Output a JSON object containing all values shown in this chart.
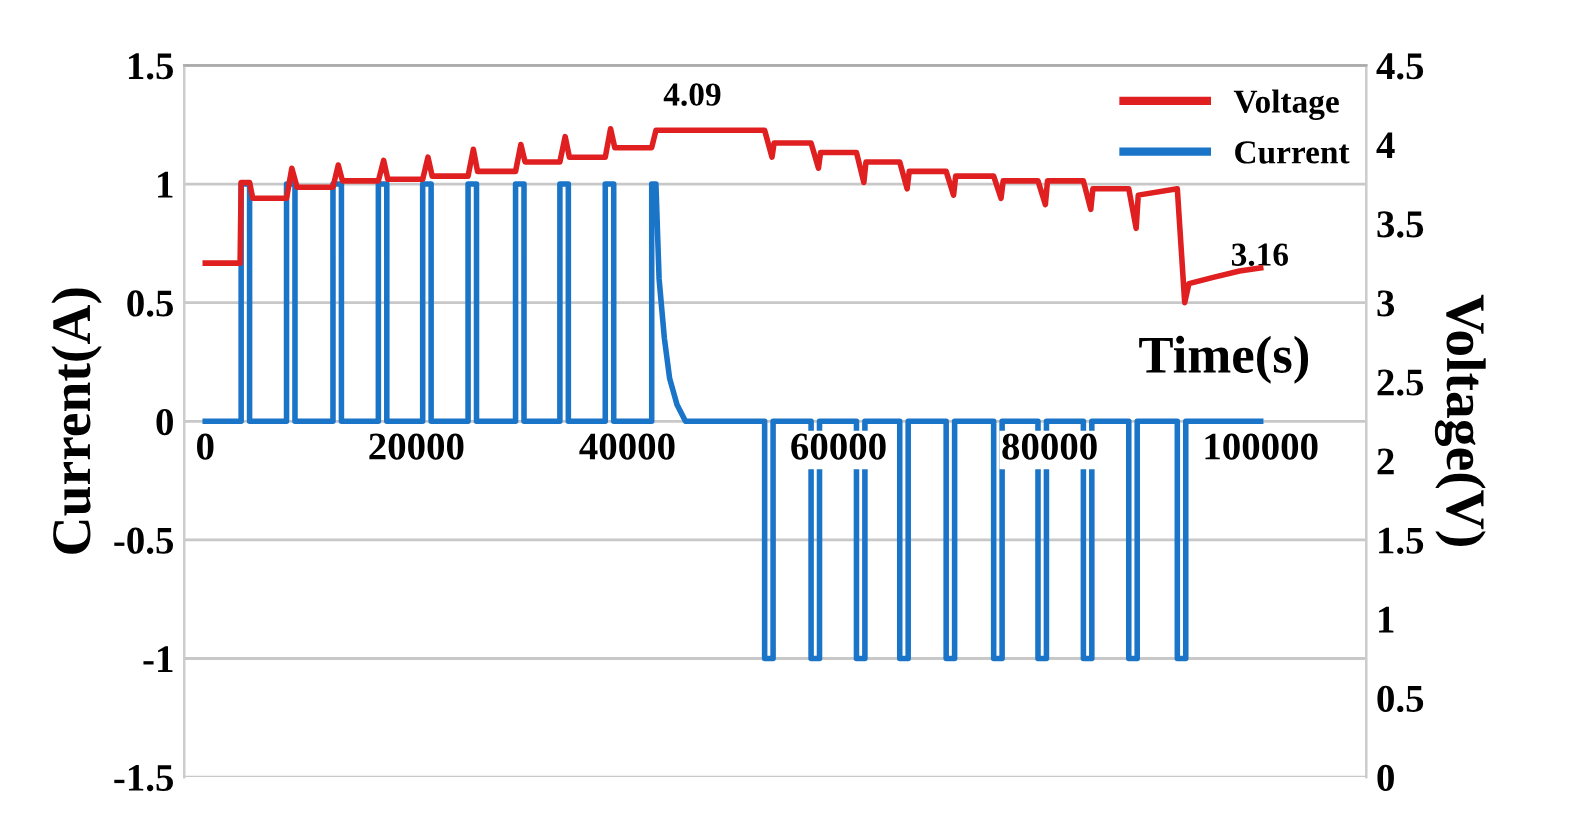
{
  "chart_data": {
    "type": "line",
    "xlabel": "Time(s)",
    "ylabel": "Current(A)",
    "y2label": "Voltage(V)",
    "xlim": [
      -2000,
      110000
    ],
    "xticks": [
      0,
      20000,
      40000,
      60000,
      80000,
      100000
    ],
    "ylim": [
      -1.5,
      1.5
    ],
    "yticks": [
      -1.5,
      -1,
      -0.5,
      0,
      0.5,
      1,
      1.5
    ],
    "y2lim": [
      0,
      4.5
    ],
    "y2ticks": [
      0,
      0.5,
      1,
      1.5,
      2,
      2.5,
      3,
      3.5,
      4,
      4.5
    ],
    "grid": "y",
    "legend": "top right",
    "marker": "none",
    "line_style": "solid",
    "annotations": [
      "4.09",
      "3.16"
    ],
    "series": [
      {
        "name": "Voltage",
        "color": "#e02020",
        "axis": "y2",
        "x": [
          0,
          3300,
          3400,
          4200,
          4500,
          7700,
          8200,
          8700,
          12100,
          12600,
          13000,
          16400,
          16900,
          17300,
          20600,
          21100,
          21500,
          24900,
          25400,
          25800,
          29400,
          29900,
          30300,
          33600,
          34100,
          34500,
          37900,
          38400,
          38800,
          42300,
          42700,
          53000,
          53700,
          53900,
          57400,
          58100,
          58300,
          61700,
          62400,
          62600,
          65800,
          66500,
          66700,
          70200,
          70900,
          71100,
          74700,
          75400,
          75600,
          78900,
          79600,
          79800,
          83200,
          83900,
          84100,
          87500,
          88200,
          88400,
          92100,
          92800,
          93200,
          95500,
          98000,
          100000
        ],
        "values": [
          3.25,
          3.25,
          3.76,
          3.76,
          3.66,
          3.66,
          3.85,
          3.73,
          3.73,
          3.87,
          3.77,
          3.77,
          3.9,
          3.78,
          3.78,
          3.92,
          3.8,
          3.8,
          3.97,
          3.83,
          3.83,
          4.0,
          3.89,
          3.89,
          4.05,
          3.92,
          3.92,
          4.1,
          3.98,
          3.98,
          4.09,
          4.09,
          3.92,
          4.01,
          4.01,
          3.85,
          3.95,
          3.95,
          3.76,
          3.89,
          3.89,
          3.72,
          3.83,
          3.83,
          3.68,
          3.8,
          3.8,
          3.66,
          3.77,
          3.77,
          3.62,
          3.77,
          3.77,
          3.59,
          3.72,
          3.72,
          3.47,
          3.68,
          3.72,
          3.0,
          3.12,
          3.16,
          3.2,
          3.22
        ]
      },
      {
        "name": "Current",
        "color": "#1a74c8",
        "x": [
          0,
          3400,
          3400,
          4200,
          4200,
          7700,
          7700,
          8500,
          8500,
          12100,
          12100,
          12900,
          12900,
          16400,
          16400,
          17200,
          17200,
          20600,
          20600,
          21400,
          21400,
          24900,
          24900,
          25700,
          25700,
          29400,
          29400,
          30200,
          30200,
          33600,
          33600,
          34400,
          34400,
          37900,
          37900,
          38700,
          38700,
          42300,
          42300,
          42700,
          43000,
          43500,
          44000,
          44700,
          45500,
          53000,
          53000,
          53800,
          53800,
          57400,
          57400,
          58200,
          58200,
          61700,
          61700,
          62500,
          62500,
          65800,
          65800,
          66600,
          66600,
          70200,
          70200,
          71000,
          71000,
          74700,
          74700,
          75500,
          75500,
          78900,
          78900,
          79700,
          79700,
          83200,
          83200,
          84000,
          84000,
          87500,
          87500,
          88300,
          88300,
          92100,
          92100,
          92900,
          92900,
          100000
        ],
        "values": [
          0,
          0,
          1,
          1,
          0,
          0,
          1,
          1,
          0,
          0,
          1,
          1,
          0,
          0,
          1,
          1,
          0,
          0,
          1,
          1,
          0,
          0,
          1,
          1,
          0,
          0,
          1,
          1,
          0,
          0,
          1,
          1,
          0,
          0,
          1,
          1,
          0,
          0,
          1,
          1,
          0.6,
          0.35,
          0.18,
          0.07,
          0,
          0,
          -1,
          -1,
          0,
          0,
          -1,
          -1,
          0,
          0,
          -1,
          -1,
          0,
          0,
          -1,
          -1,
          0,
          0,
          -1,
          -1,
          0,
          0,
          -1,
          -1,
          0,
          0,
          -1,
          -1,
          0,
          0,
          -1,
          -1,
          0,
          0,
          -1,
          -1,
          0,
          0,
          -1,
          -1,
          0,
          0
        ]
      }
    ]
  }
}
